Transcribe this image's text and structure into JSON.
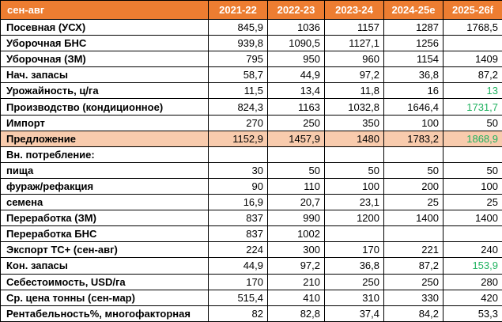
{
  "colors": {
    "header_bg": "#ED7D31",
    "header_text": "#FFFFFF",
    "highlight_bg": "#F8CBAD",
    "green_text": "#1FB25F",
    "border": "#000000"
  },
  "table": {
    "header": {
      "label": "сен-авг",
      "columns": [
        "2021-22",
        "2022-23",
        "2023-24",
        "2024-25e",
        "2025-26f"
      ]
    },
    "rows": [
      {
        "label": "Посевная (УСХ)",
        "values": [
          "845,9",
          "1036",
          "1157",
          "1287",
          "1768,5"
        ]
      },
      {
        "label": "Уборочная БНС",
        "values": [
          "939,8",
          "1090,5",
          "1127,1",
          "1256",
          ""
        ]
      },
      {
        "label": "Уборочная (ЗМ)",
        "values": [
          "795",
          "950",
          "960",
          "1154",
          "1409"
        ]
      },
      {
        "label": "Нач. запасы",
        "values": [
          "58,7",
          "44,9",
          "97,2",
          "36,8",
          "87,2"
        ]
      },
      {
        "label": "Урожайность, ц/га",
        "values": [
          "11,5",
          "13,4",
          "11,8",
          "16",
          "13"
        ],
        "green_cols": [
          4
        ]
      },
      {
        "label": "Производство (кондиционное)",
        "values": [
          "824,3",
          "1163",
          "1032,8",
          "1646,4",
          "1731,7"
        ],
        "green_cols": [
          4
        ]
      },
      {
        "label": "Импорт",
        "values": [
          "270",
          "250",
          "350",
          "100",
          "50"
        ]
      },
      {
        "label": "Предложение",
        "values": [
          "1152,9",
          "1457,9",
          "1480",
          "1783,2",
          "1868,9"
        ],
        "highlight": true,
        "green_cols": [
          4
        ]
      },
      {
        "label": "Вн. потребление:",
        "values": [
          "",
          "",
          "",
          "",
          ""
        ]
      },
      {
        "label": "пища",
        "values": [
          "30",
          "50",
          "50",
          "50",
          "50"
        ]
      },
      {
        "label": "фураж/рефакция",
        "values": [
          "90",
          "110",
          "100",
          "200",
          "100"
        ]
      },
      {
        "label": "семена",
        "values": [
          "16,9",
          "20,7",
          "23,1",
          "25",
          "25"
        ]
      },
      {
        "label": "Переработка (ЗМ)",
        "values": [
          "837",
          "990",
          "1200",
          "1400",
          "1400"
        ]
      },
      {
        "label": "Переработка БНС",
        "values": [
          "837",
          "1002",
          "",
          "",
          ""
        ]
      },
      {
        "label": "Экспорт ТС+ (сен-авг)",
        "values": [
          "224",
          "300",
          "170",
          "221",
          "240"
        ]
      },
      {
        "label": "Кон. запасы",
        "values": [
          "44,9",
          "97,2",
          "36,8",
          "87,2",
          "153,9"
        ],
        "green_cols": [
          4
        ]
      },
      {
        "label": "Себестоимость, USD/га",
        "values": [
          "170",
          "210",
          "250",
          "250",
          "280"
        ]
      },
      {
        "label": "Ср. цена тонны (сен-мар)",
        "values": [
          "515,4",
          "410",
          "310",
          "330",
          "420"
        ]
      },
      {
        "label": "Рентабельность%, многофакторная",
        "values": [
          "82",
          "82,8",
          "37,4",
          "84,2",
          "53,3"
        ]
      }
    ]
  },
  "chart_data": {
    "type": "table",
    "title": "сен-авг",
    "categories": [
      "2021-22",
      "2022-23",
      "2023-24",
      "2024-25e",
      "2025-26f"
    ],
    "series": [
      {
        "name": "Посевная (УСХ)",
        "values": [
          845.9,
          1036,
          1157,
          1287,
          1768.5
        ]
      },
      {
        "name": "Уборочная БНС",
        "values": [
          939.8,
          1090.5,
          1127.1,
          1256,
          null
        ]
      },
      {
        "name": "Уборочная (ЗМ)",
        "values": [
          795,
          950,
          960,
          1154,
          1409
        ]
      },
      {
        "name": "Нач. запасы",
        "values": [
          58.7,
          44.9,
          97.2,
          36.8,
          87.2
        ]
      },
      {
        "name": "Урожайность, ц/га",
        "values": [
          11.5,
          13.4,
          11.8,
          16,
          13
        ]
      },
      {
        "name": "Производство (кондиционное)",
        "values": [
          824.3,
          1163,
          1032.8,
          1646.4,
          1731.7
        ]
      },
      {
        "name": "Импорт",
        "values": [
          270,
          250,
          350,
          100,
          50
        ]
      },
      {
        "name": "Предложение",
        "values": [
          1152.9,
          1457.9,
          1480,
          1783.2,
          1868.9
        ]
      },
      {
        "name": "Вн. потребление:",
        "values": [
          null,
          null,
          null,
          null,
          null
        ]
      },
      {
        "name": "пища",
        "values": [
          30,
          50,
          50,
          50,
          50
        ]
      },
      {
        "name": "фураж/рефакция",
        "values": [
          90,
          110,
          100,
          200,
          100
        ]
      },
      {
        "name": "семена",
        "values": [
          16.9,
          20.7,
          23.1,
          25,
          25
        ]
      },
      {
        "name": "Переработка (ЗМ)",
        "values": [
          837,
          990,
          1200,
          1400,
          1400
        ]
      },
      {
        "name": "Переработка БНС",
        "values": [
          837,
          1002,
          null,
          null,
          null
        ]
      },
      {
        "name": "Экспорт ТС+ (сен-авг)",
        "values": [
          224,
          300,
          170,
          221,
          240
        ]
      },
      {
        "name": "Кон. запасы",
        "values": [
          44.9,
          97.2,
          36.8,
          87.2,
          153.9
        ]
      },
      {
        "name": "Себестоимость, USD/га",
        "values": [
          170,
          210,
          250,
          250,
          280
        ]
      },
      {
        "name": "Ср. цена тонны (сен-мар)",
        "values": [
          515.4,
          410,
          310,
          330,
          420
        ]
      },
      {
        "name": "Рентабельность%, многофакторная",
        "values": [
          82,
          82.8,
          37.4,
          84.2,
          53.3
        ]
      }
    ]
  }
}
